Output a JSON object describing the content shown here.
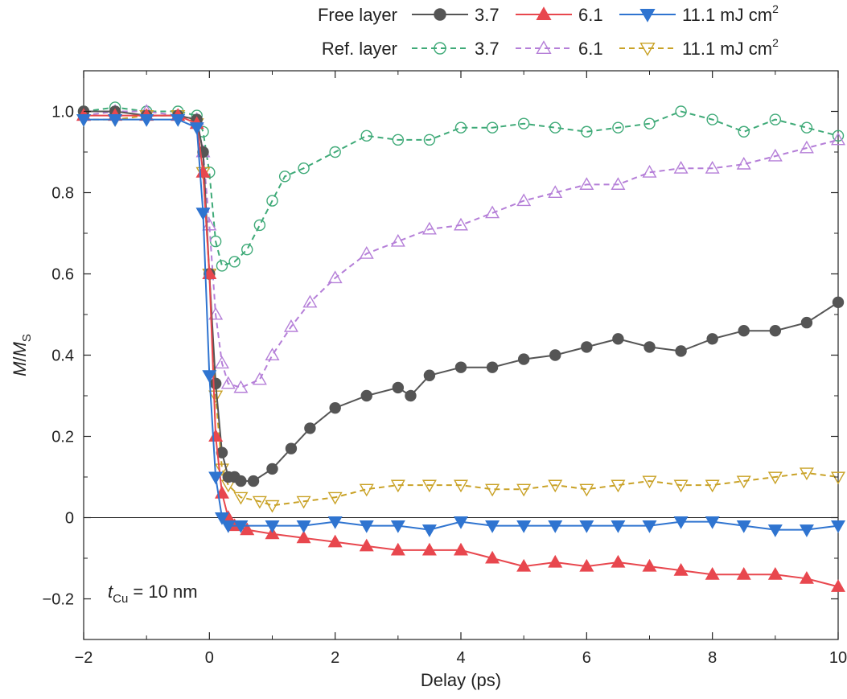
{
  "chart_data": {
    "type": "line",
    "xlabel": "Delay (ps)",
    "ylabel_main": "M",
    "ylabel_sub": "S",
    "xlim": [
      -2,
      10
    ],
    "ylim": [
      -0.3,
      1.1
    ],
    "x_ticks": [
      "-2",
      "0",
      "2",
      "4",
      "6",
      "8",
      "10"
    ],
    "y_ticks": [
      "1.0",
      "0.8",
      "0.6",
      "0.4",
      "0.2",
      "0",
      "-0.2"
    ],
    "x_tick_values": [
      -2,
      0,
      2,
      4,
      6,
      8,
      10
    ],
    "y_tick_values": [
      1.0,
      0.8,
      0.6,
      0.4,
      0.2,
      0,
      -0.2
    ],
    "zero_line": true,
    "grid": false,
    "legend_position": "top",
    "legend": {
      "row1_label": "Free layer",
      "row2_label": "Ref. layer",
      "unit_text": "mJ cm",
      "unit_sup": "2"
    },
    "annotation": {
      "t": "t",
      "sub": "Cu",
      "rest": " = 10 nm"
    },
    "series": [
      {
        "name": "3.7",
        "group": "Free layer",
        "color": "#555555",
        "marker": "circle",
        "filled": true,
        "dashed": false,
        "x": [
          -2,
          -1.5,
          -1,
          -0.5,
          -0.2,
          -0.1,
          0,
          0.1,
          0.2,
          0.3,
          0.4,
          0.5,
          0.7,
          1.0,
          1.3,
          1.6,
          2.0,
          2.5,
          3.0,
          3.2,
          3.5,
          4.0,
          4.5,
          5.0,
          5.5,
          6.0,
          6.5,
          7.0,
          7.5,
          8.0,
          8.5,
          9.0,
          9.5,
          10.0
        ],
        "y": [
          1.0,
          1.0,
          0.99,
          0.99,
          0.98,
          0.9,
          0.6,
          0.33,
          0.16,
          0.1,
          0.1,
          0.09,
          0.09,
          0.12,
          0.17,
          0.22,
          0.27,
          0.3,
          0.32,
          0.3,
          0.35,
          0.37,
          0.37,
          0.39,
          0.4,
          0.42,
          0.44,
          0.42,
          0.41,
          0.44,
          0.46,
          0.46,
          0.48,
          0.53
        ]
      },
      {
        "name": "6.1",
        "group": "Free layer",
        "color": "#e8474e",
        "marker": "triangle-up",
        "filled": true,
        "dashed": false,
        "x": [
          -2,
          -1.5,
          -1,
          -0.5,
          -0.2,
          -0.1,
          0,
          0.1,
          0.2,
          0.3,
          0.4,
          0.6,
          1.0,
          1.5,
          2.0,
          2.5,
          3.0,
          3.5,
          4.0,
          4.5,
          5.0,
          5.5,
          6.0,
          6.5,
          7.0,
          7.5,
          8.0,
          8.5,
          9.0,
          9.5,
          10.0
        ],
        "y": [
          0.99,
          0.99,
          0.99,
          0.99,
          0.97,
          0.85,
          0.6,
          0.2,
          0.06,
          0.0,
          -0.02,
          -0.03,
          -0.04,
          -0.05,
          -0.06,
          -0.07,
          -0.08,
          -0.08,
          -0.08,
          -0.1,
          -0.12,
          -0.11,
          -0.12,
          -0.11,
          -0.12,
          -0.13,
          -0.14,
          -0.14,
          -0.14,
          -0.15,
          -0.17
        ]
      },
      {
        "name": "11.1",
        "group": "Free layer",
        "color": "#2f74d0",
        "marker": "triangle-down",
        "filled": true,
        "dashed": false,
        "x": [
          -2,
          -1.5,
          -1,
          -0.5,
          -0.2,
          -0.1,
          0,
          0.1,
          0.2,
          0.3,
          0.5,
          1.0,
          1.5,
          2.0,
          2.5,
          3.0,
          3.5,
          4.0,
          4.5,
          5.0,
          5.5,
          6.0,
          6.5,
          7.0,
          7.5,
          8.0,
          8.5,
          9.0,
          9.5,
          10.0
        ],
        "y": [
          0.98,
          0.98,
          0.98,
          0.98,
          0.96,
          0.75,
          0.35,
          0.1,
          0.0,
          -0.02,
          -0.02,
          -0.02,
          -0.02,
          -0.01,
          -0.02,
          -0.02,
          -0.03,
          -0.01,
          -0.02,
          -0.02,
          -0.02,
          -0.02,
          -0.02,
          -0.02,
          -0.01,
          -0.01,
          -0.02,
          -0.03,
          -0.03,
          -0.02
        ]
      },
      {
        "name": "3.7",
        "group": "Ref. layer",
        "color": "#3faa78",
        "marker": "circle",
        "filled": false,
        "dashed": true,
        "x": [
          -2,
          -1.5,
          -1,
          -0.5,
          -0.2,
          -0.1,
          0,
          0.1,
          0.2,
          0.4,
          0.6,
          0.8,
          1.0,
          1.2,
          1.5,
          2.0,
          2.5,
          3.0,
          3.5,
          4.0,
          4.5,
          5.0,
          5.5,
          6.0,
          6.5,
          7.0,
          7.5,
          8.0,
          8.5,
          9.0,
          9.5,
          10.0
        ],
        "y": [
          1.0,
          1.01,
          1.0,
          1.0,
          0.99,
          0.95,
          0.85,
          0.68,
          0.62,
          0.63,
          0.66,
          0.72,
          0.78,
          0.84,
          0.86,
          0.9,
          0.94,
          0.93,
          0.93,
          0.96,
          0.96,
          0.97,
          0.96,
          0.95,
          0.96,
          0.97,
          1.0,
          0.98,
          0.95,
          0.98,
          0.96,
          0.94
        ]
      },
      {
        "name": "6.1",
        "group": "Ref. layer",
        "color": "#b57fd8",
        "marker": "triangle-up",
        "filled": false,
        "dashed": true,
        "x": [
          -2,
          -1.5,
          -1,
          -0.5,
          -0.2,
          -0.1,
          0,
          0.1,
          0.2,
          0.3,
          0.5,
          0.8,
          1.0,
          1.3,
          1.6,
          2.0,
          2.5,
          3.0,
          3.5,
          4.0,
          4.5,
          5.0,
          5.5,
          6.0,
          6.5,
          7.0,
          7.5,
          8.0,
          8.5,
          9.0,
          9.5,
          10.0
        ],
        "y": [
          0.99,
          1.0,
          1.0,
          0.99,
          0.98,
          0.9,
          0.72,
          0.5,
          0.38,
          0.33,
          0.32,
          0.34,
          0.4,
          0.47,
          0.53,
          0.59,
          0.65,
          0.68,
          0.71,
          0.72,
          0.75,
          0.78,
          0.8,
          0.82,
          0.82,
          0.85,
          0.86,
          0.86,
          0.87,
          0.89,
          0.91,
          0.93
        ]
      },
      {
        "name": "11.1",
        "group": "Ref. layer",
        "color": "#c9a227",
        "marker": "triangle-down",
        "filled": false,
        "dashed": true,
        "x": [
          -2,
          -1.5,
          -1,
          -0.5,
          -0.2,
          -0.1,
          0,
          0.1,
          0.2,
          0.3,
          0.5,
          0.8,
          1.0,
          1.5,
          2.0,
          2.5,
          3.0,
          3.5,
          4.0,
          4.5,
          5.0,
          5.5,
          6.0,
          6.5,
          7.0,
          7.5,
          8.0,
          8.5,
          9.0,
          9.5,
          10.0
        ],
        "y": [
          0.98,
          0.98,
          0.99,
          0.99,
          0.97,
          0.85,
          0.6,
          0.3,
          0.12,
          0.08,
          0.05,
          0.04,
          0.03,
          0.04,
          0.05,
          0.07,
          0.08,
          0.08,
          0.08,
          0.07,
          0.07,
          0.08,
          0.07,
          0.08,
          0.09,
          0.08,
          0.08,
          0.09,
          0.1,
          0.11,
          0.1
        ]
      }
    ]
  }
}
